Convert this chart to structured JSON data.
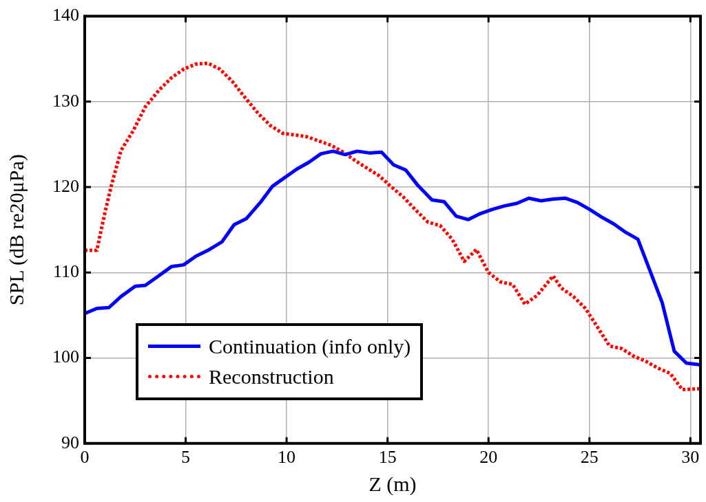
{
  "chart_data": {
    "type": "line",
    "xlabel": "Z (m)",
    "ylabel": "SPL (dB re20μPa)",
    "xlim": [
      0,
      30.5
    ],
    "xticks": [
      0,
      5,
      10,
      15,
      20,
      25,
      30
    ],
    "ylim": [
      90,
      140
    ],
    "yticks": [
      90,
      100,
      110,
      120,
      130,
      140
    ],
    "grid": true,
    "legend": "bottom left",
    "marker": "none",
    "series": [
      {
        "name": "Continuation (info only)",
        "color": "#0000ff",
        "line_style": "solid",
        "x": [
          0,
          0.6,
          1.2,
          1.8,
          2.5,
          3.0,
          3.6,
          4.3,
          4.9,
          5.5,
          6.1,
          6.8,
          7.4,
          8.0,
          8.7,
          9.3,
          9.9,
          10.5,
          11.1,
          11.7,
          12.3,
          12.9,
          13.5,
          14.1,
          14.7,
          15.3,
          15.9,
          16.5,
          17.2,
          17.8,
          18.4,
          19.0,
          19.6,
          20.2,
          20.8,
          21.4,
          22.0,
          22.6,
          23.2,
          23.8,
          24.4,
          25.0,
          25.6,
          26.2,
          26.8,
          27.4,
          28.6,
          29.2,
          29.8,
          30.5
        ],
        "values": [
          105.2,
          105.8,
          105.9,
          107.2,
          108.4,
          108.5,
          109.5,
          110.7,
          110.9,
          111.9,
          112.6,
          113.6,
          115.6,
          116.3,
          118.2,
          120.1,
          121.1,
          122.1,
          122.9,
          123.9,
          124.2,
          123.8,
          124.2,
          124.0,
          124.1,
          122.6,
          122.0,
          120.2,
          118.5,
          118.3,
          116.6,
          116.2,
          116.9,
          117.4,
          117.8,
          118.1,
          118.7,
          118.4,
          118.6,
          118.7,
          118.2,
          117.4,
          116.5,
          115.7,
          114.7,
          113.9,
          106.5,
          100.8,
          99.4,
          99.2
        ]
      },
      {
        "name": "Reconstruction",
        "color": "#ff0000",
        "line_style": "dotted",
        "x": [
          0,
          0.6,
          1.0,
          1.3,
          1.8,
          2.4,
          3.0,
          3.7,
          4.3,
          4.9,
          5.5,
          6.1,
          6.7,
          7.3,
          7.9,
          8.6,
          9.2,
          9.8,
          10.4,
          11.0,
          11.6,
          12.2,
          12.8,
          13.4,
          14.0,
          14.6,
          15.2,
          15.8,
          16.4,
          17.0,
          17.6,
          18.2,
          18.8,
          19.4,
          20.0,
          20.6,
          21.2,
          21.8,
          22.4,
          23.2,
          23.6,
          24.2,
          24.8,
          25.4,
          26.0,
          26.6,
          27.2,
          27.8,
          28.4,
          29.0,
          29.6,
          30.5
        ],
        "values": [
          112.6,
          112.6,
          117,
          120,
          124.3,
          126.6,
          129.4,
          131.4,
          132.8,
          133.8,
          134.4,
          134.5,
          133.8,
          132.4,
          130.6,
          128.6,
          127.2,
          126.3,
          126.1,
          125.9,
          125.4,
          124.9,
          124.1,
          123.1,
          122.2,
          121.3,
          120.0,
          118.8,
          117.3,
          115.9,
          115.5,
          113.9,
          111.3,
          112.7,
          110.0,
          108.9,
          108.6,
          106.3,
          107.3,
          109.6,
          108.2,
          107.2,
          105.8,
          103.6,
          101.4,
          101.1,
          100.2,
          99.6,
          98.8,
          98.2,
          96.3,
          96.4
        ]
      }
    ]
  }
}
